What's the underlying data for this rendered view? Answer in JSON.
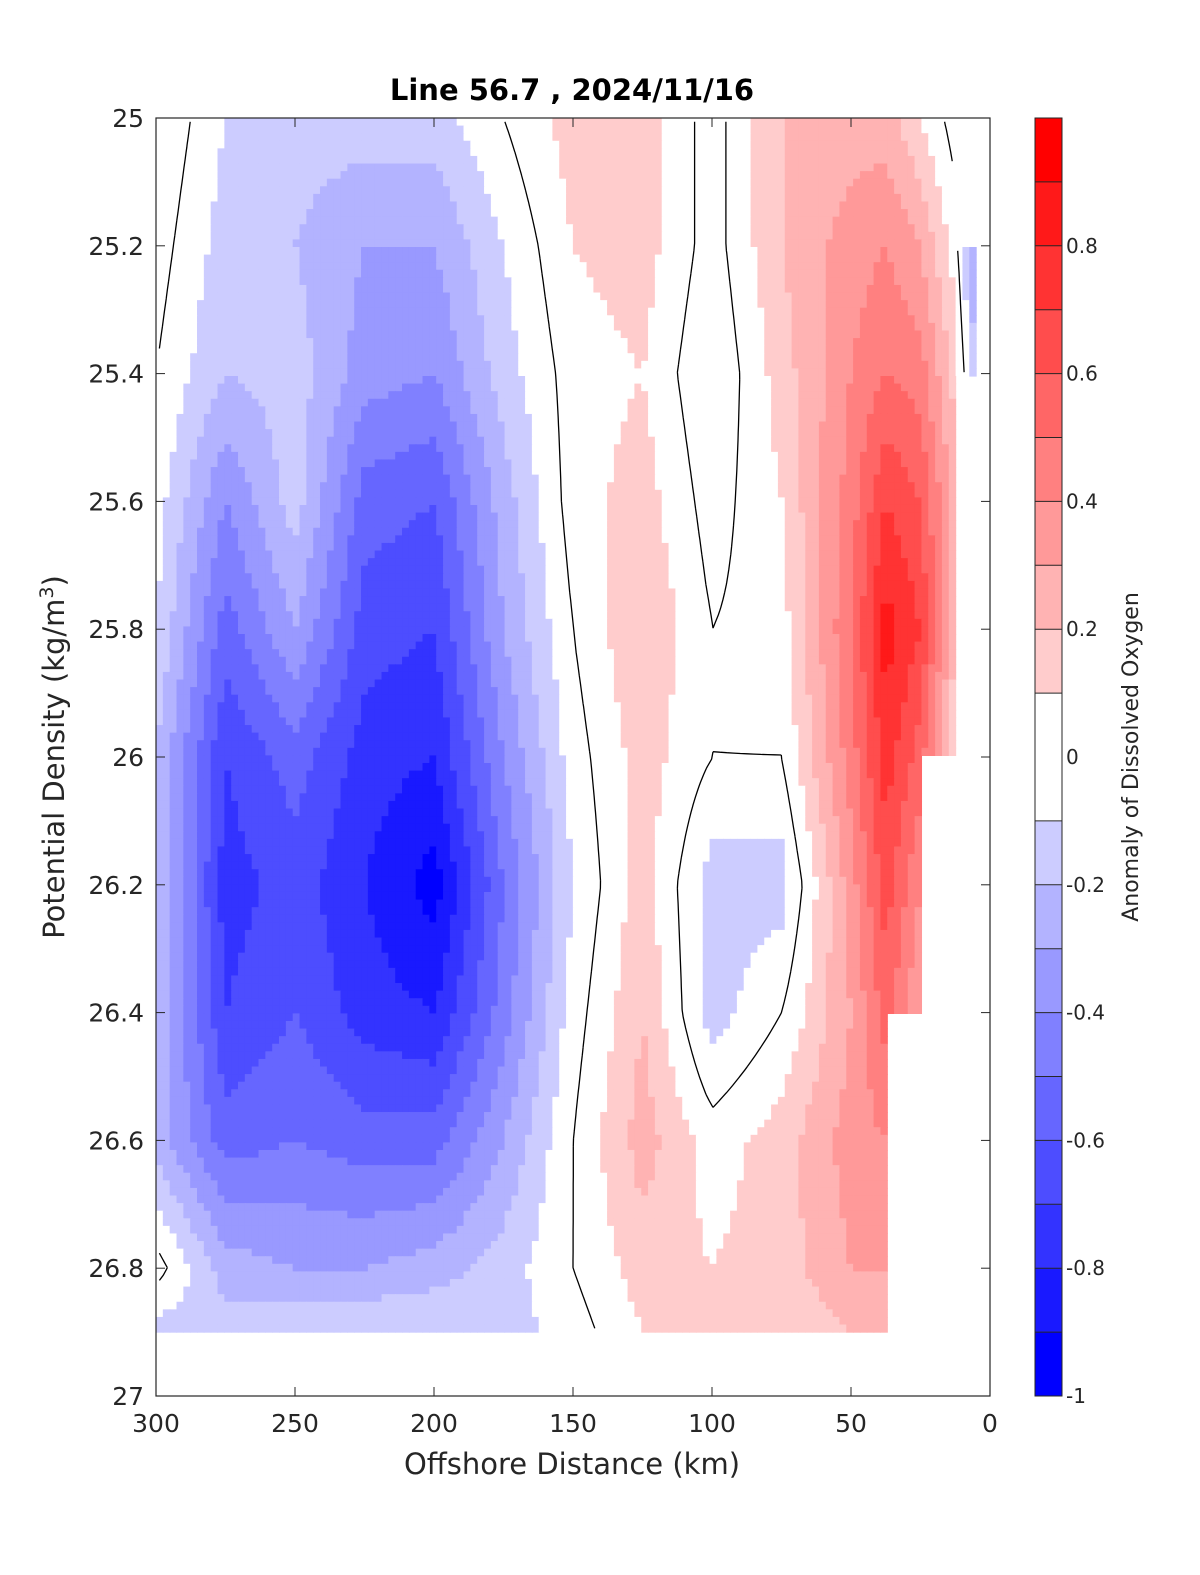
{
  "chart_data": {
    "type": "heatmap",
    "title": "Line 56.7 , 2024/11/16",
    "xlabel": "Offshore Distance (km)",
    "ylabel": "Potential Density (kg/m",
    "ylabel_superscript": "3",
    "ylabel_suffix": ")",
    "colorbar_label": "Anomaly of Dissolved Oxygen",
    "xlim": [
      300,
      0
    ],
    "ylim": [
      25,
      27
    ],
    "x_reversed": true,
    "y_reversed": true,
    "x_ticks": [
      {
        "value": 300,
        "label": "300"
      },
      {
        "value": 250,
        "label": "250"
      },
      {
        "value": 200,
        "label": "200"
      },
      {
        "value": 150,
        "label": "150"
      },
      {
        "value": 100,
        "label": "100"
      },
      {
        "value": 50,
        "label": "50"
      },
      {
        "value": 0,
        "label": "0"
      }
    ],
    "y_ticks": [
      {
        "value": 25,
        "label": "25"
      },
      {
        "value": 25.2,
        "label": "25.2"
      },
      {
        "value": 25.4,
        "label": "25.4"
      },
      {
        "value": 25.6,
        "label": "25.6"
      },
      {
        "value": 25.8,
        "label": "25.8"
      },
      {
        "value": 26,
        "label": "26"
      },
      {
        "value": 26.2,
        "label": "26.2"
      },
      {
        "value": 26.4,
        "label": "26.4"
      },
      {
        "value": 26.6,
        "label": "26.6"
      },
      {
        "value": 26.8,
        "label": "26.8"
      },
      {
        "value": 27,
        "label": "27"
      }
    ],
    "colorbar": {
      "range": [
        -1,
        1
      ],
      "levels": [
        -1,
        -0.9,
        -0.8,
        -0.7,
        -0.6,
        -0.5,
        -0.4,
        -0.3,
        -0.2,
        -0.1,
        0.1,
        0.2,
        0.3,
        0.4,
        0.5,
        0.6,
        0.7,
        0.8,
        0.9,
        1
      ],
      "ticks": [
        {
          "value": -1,
          "label": "-1"
        },
        {
          "value": -0.8,
          "label": "-0.8"
        },
        {
          "value": -0.6,
          "label": "-0.6"
        },
        {
          "value": -0.4,
          "label": "-0.4"
        },
        {
          "value": -0.2,
          "label": "-0.2"
        },
        {
          "value": 0,
          "label": "0"
        },
        {
          "value": 0.2,
          "label": "0.2"
        },
        {
          "value": 0.4,
          "label": "0.4"
        },
        {
          "value": 0.6,
          "label": "0.6"
        },
        {
          "value": 0.8,
          "label": "0.8"
        }
      ],
      "negative_color": "#0000ff",
      "positive_color": "#ff0000",
      "zero_color": "#ffffff"
    },
    "contour_level": 0,
    "x": [
      300,
      275,
      250,
      225,
      200,
      175,
      150,
      125,
      100,
      75,
      50,
      37.5,
      25,
      12.5,
      5
    ],
    "y": [
      25.0,
      25.2,
      25.4,
      25.6,
      25.8,
      26.0,
      26.2,
      26.4,
      26.6,
      26.8,
      26.9
    ],
    "z": [
      [
        0.1,
        -0.1,
        -0.15,
        -0.15,
        -0.15,
        0.0,
        0.15,
        0.15,
        -0.05,
        0.2,
        0.25,
        0.25,
        0.1,
        -0.05,
        null
      ],
      [
        0.05,
        -0.15,
        -0.2,
        -0.3,
        -0.3,
        -0.1,
        0.1,
        0.15,
        -0.05,
        0.2,
        0.35,
        0.4,
        0.3,
        0.05,
        -0.35
      ],
      [
        0.0,
        -0.2,
        -0.15,
        -0.35,
        -0.4,
        -0.15,
        0.05,
        0.1,
        -0.1,
        0.15,
        0.4,
        0.5,
        0.45,
        0.15,
        -0.2
      ],
      [
        -0.05,
        -0.4,
        -0.15,
        -0.55,
        -0.6,
        -0.25,
        0.05,
        0.15,
        -0.05,
        0.1,
        0.45,
        0.7,
        0.6,
        0.25,
        null
      ],
      [
        -0.1,
        -0.55,
        -0.3,
        -0.65,
        -0.7,
        -0.3,
        0.0,
        0.2,
        0.0,
        0.05,
        0.5,
        0.85,
        0.7,
        0.2,
        null
      ],
      [
        -0.2,
        -0.7,
        -0.55,
        -0.75,
        -0.8,
        -0.4,
        -0.05,
        0.15,
        0.0,
        0.0,
        0.45,
        0.75,
        0.55,
        0.1,
        null
      ],
      [
        -0.2,
        -0.75,
        -0.65,
        -0.8,
        -0.95,
        -0.5,
        -0.1,
        0.15,
        -0.15,
        -0.15,
        0.35,
        0.65,
        0.4,
        null,
        null
      ],
      [
        -0.2,
        -0.7,
        -0.6,
        -0.75,
        -0.8,
        -0.45,
        -0.05,
        0.2,
        -0.15,
        0.0,
        0.3,
        0.55,
        0.3,
        null,
        null
      ],
      [
        -0.25,
        -0.55,
        -0.5,
        -0.55,
        -0.55,
        -0.3,
        0.0,
        0.25,
        0.05,
        0.15,
        0.35,
        0.4,
        null,
        null,
        null
      ],
      [
        0.05,
        -0.25,
        -0.3,
        -0.3,
        -0.25,
        -0.15,
        0.0,
        0.15,
        0.1,
        0.15,
        0.3,
        0.3,
        null,
        null,
        null
      ],
      [
        -0.15,
        -0.15,
        -0.1,
        -0.1,
        -0.1,
        -0.15,
        -0.05,
        0.1,
        0.1,
        0.1,
        0.2,
        0.2,
        null,
        null,
        null
      ]
    ]
  }
}
